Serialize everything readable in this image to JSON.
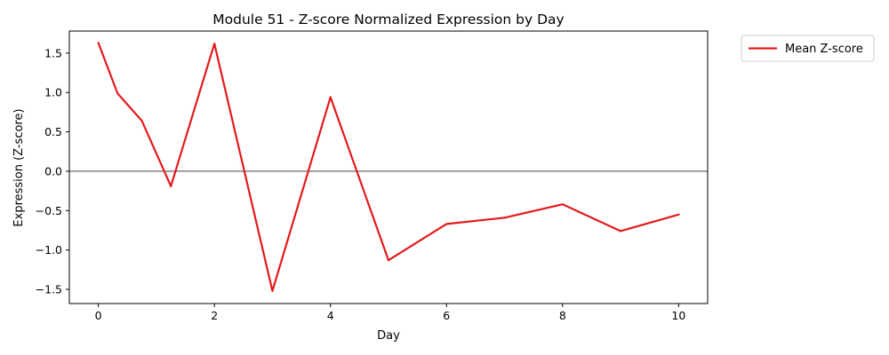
{
  "chart_data": {
    "type": "line",
    "title": "Module 51 - Z-score Normalized Expression by Day",
    "xlabel": "Day",
    "ylabel": "Expression (Z-score)",
    "xlim": [
      -0.5,
      10.5
    ],
    "ylim": [
      -1.68,
      1.78
    ],
    "xticks": [
      0,
      2,
      4,
      6,
      8,
      10
    ],
    "yticks": [
      -1.5,
      -1.0,
      -0.5,
      0.0,
      0.5,
      1.0,
      1.5
    ],
    "ytick_labels": [
      "−1.5",
      "−1.0",
      "−0.5",
      "0.0",
      "0.5",
      "1.0",
      "1.5"
    ],
    "grid": false,
    "zero_line": true,
    "legend_position": "outside-top-right",
    "series": [
      {
        "name": "Mean Z-score",
        "color": "#e41a1c",
        "x": [
          0,
          0.33,
          0.75,
          1.25,
          2,
          3,
          4,
          5,
          6,
          7,
          8,
          9,
          10
        ],
        "y": [
          1.63,
          0.99,
          0.64,
          -0.19,
          1.62,
          -1.52,
          0.94,
          -1.13,
          -0.67,
          -0.59,
          -0.42,
          -0.76,
          -0.55
        ]
      }
    ]
  }
}
